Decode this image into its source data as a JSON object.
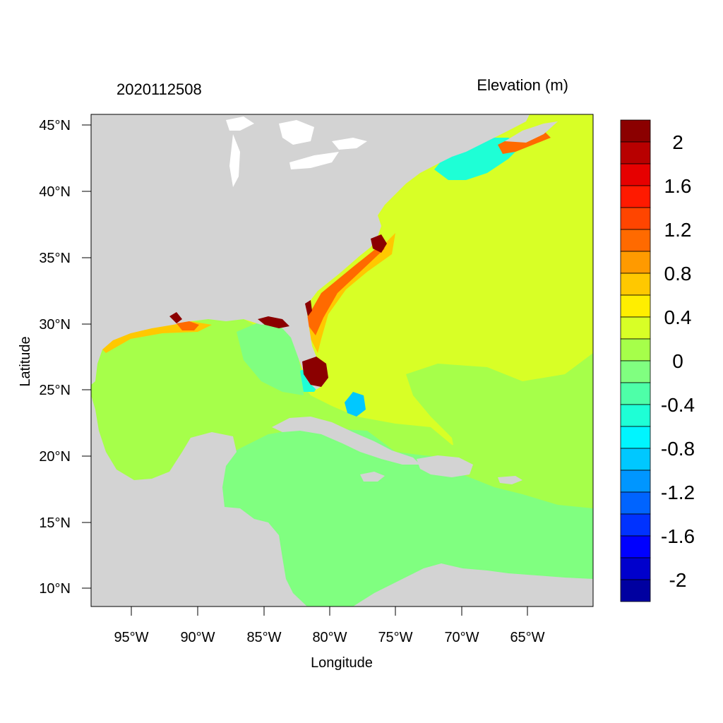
{
  "left_title": "2020112508",
  "right_title": "Elevation (m)",
  "x_axis_label": "Longitude",
  "y_axis_label": "Latitude",
  "lon_ticks": [
    "95°W",
    "90°W",
    "85°W",
    "80°W",
    "75°W",
    "70°W",
    "65°W"
  ],
  "lat_ticks": [
    "45°N",
    "40°N",
    "35°N",
    "30°N",
    "25°N",
    "20°N",
    "15°N",
    "10°N"
  ],
  "colorbar": {
    "labels": [
      "2",
      "1.6",
      "1.2",
      "0.8",
      "0.4",
      "0",
      "-0.4",
      "-0.8",
      "-1.2",
      "-1.6",
      "-2"
    ],
    "colors": [
      "#8b0000",
      "#b80000",
      "#e60000",
      "#ff1a00",
      "#ff4500",
      "#ff6a00",
      "#ff9a00",
      "#ffc800",
      "#ffee00",
      "#d8ff26",
      "#a6ff4a",
      "#80ff80",
      "#4effa8",
      "#1effd6",
      "#00f5ff",
      "#00c8ff",
      "#0096ff",
      "#0064ff",
      "#0032ff",
      "#0000ff",
      "#0000cc",
      "#0000a0"
    ]
  },
  "colors": {
    "land": "#d3d3d3",
    "ocean_base": "#d8ff26",
    "caribbean": "#80ff80",
    "neutral": "#a6ff4a",
    "surge_high": "#8b0000",
    "surge_mid": "#ff6a00",
    "surge_low": "#ffc800",
    "setdown": "#1effd6",
    "setdown_strong": "#00c8ff"
  }
}
